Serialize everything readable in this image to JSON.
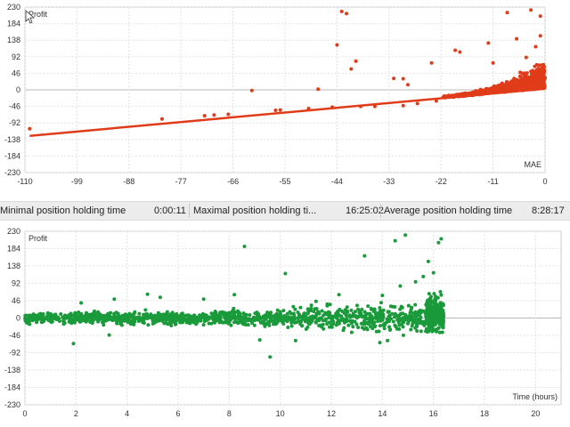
{
  "stats": {
    "min_label": "Minimal position holding time",
    "min_value": "0:00:11",
    "max_label": "Maximal position holding ti...",
    "max_value": "16:25:02",
    "avg_label": "Average position holding time",
    "avg_value": "8:28:17"
  },
  "chart_data": [
    {
      "type": "scatter",
      "ylabel": "Profit",
      "xlabel": "MAE",
      "color": "#e03c1a",
      "xlim": [
        -110,
        0
      ],
      "ylim": [
        -230,
        230
      ],
      "x_ticks": [
        -110,
        -99,
        -88,
        -77,
        -66,
        -55,
        -44,
        -33,
        -22,
        -11,
        0
      ],
      "y_ticks": [
        230,
        184,
        138,
        92,
        46,
        0,
        -46,
        -92,
        -138,
        -184,
        -230
      ],
      "grid": true,
      "trendline": {
        "x": [
          -109,
          0
        ],
        "y": [
          -128,
          3
        ]
      },
      "outlier_points": [
        [
          -109,
          -108
        ],
        [
          -81,
          -81
        ],
        [
          -72,
          -72
        ],
        [
          -70,
          -70
        ],
        [
          -67,
          -68
        ],
        [
          -62,
          -2
        ],
        [
          -57,
          -57
        ],
        [
          -56,
          -56
        ],
        [
          -48,
          2
        ],
        [
          -44,
          125
        ],
        [
          -43,
          218
        ],
        [
          -42,
          212
        ],
        [
          -41,
          58
        ],
        [
          -40,
          80
        ],
        [
          -32,
          32
        ],
        [
          -30,
          31
        ],
        [
          -29,
          14
        ],
        [
          -24,
          75
        ],
        [
          -19,
          110
        ],
        [
          -18,
          105
        ],
        [
          -12,
          130
        ],
        [
          -11,
          75
        ],
        [
          -8,
          215
        ],
        [
          -6,
          142
        ],
        [
          -4,
          90
        ],
        [
          -3,
          222
        ],
        [
          -1,
          205
        ],
        [
          -1,
          150
        ],
        [
          -2,
          120
        ],
        [
          -30,
          -44
        ],
        [
          -36,
          -46
        ],
        [
          -39,
          -46
        ],
        [
          -45,
          -48
        ],
        [
          -50,
          -52
        ],
        [
          -27,
          -38
        ],
        [
          -23,
          -31
        ]
      ],
      "cloud": {
        "x_range": [
          -22,
          0
        ],
        "y_spread_max": 90,
        "count": 900,
        "baseline_slope": 1.2
      }
    },
    {
      "type": "scatter",
      "ylabel": "Profit",
      "xlabel": "Time (hours)",
      "color": "#1a9a3a",
      "xlim": [
        0,
        21
      ],
      "ylim": [
        -230,
        230
      ],
      "x_ticks": [
        0,
        2,
        4,
        6,
        8,
        10,
        12,
        14,
        16,
        18,
        20
      ],
      "y_ticks": [
        230,
        184,
        138,
        92,
        46,
        0,
        -46,
        -92,
        -138,
        -184,
        -230
      ],
      "grid": true,
      "outlier_points": [
        [
          8.6,
          190
        ],
        [
          10.2,
          118
        ],
        [
          9.6,
          -103
        ],
        [
          13.3,
          165
        ],
        [
          14.9,
          220
        ],
        [
          14.5,
          205
        ],
        [
          16.3,
          210
        ],
        [
          16.2,
          200
        ],
        [
          13.9,
          -65
        ],
        [
          14.2,
          -60
        ],
        [
          8.2,
          62
        ],
        [
          4.8,
          63
        ],
        [
          3.5,
          50
        ],
        [
          2.2,
          40
        ],
        [
          11.4,
          44
        ],
        [
          12.3,
          62
        ],
        [
          7.0,
          50
        ],
        [
          5.3,
          55
        ],
        [
          10.6,
          -60
        ],
        [
          9.2,
          -58
        ],
        [
          1.9,
          -68
        ],
        [
          3.3,
          -45
        ],
        [
          12.8,
          -38
        ],
        [
          16.0,
          120
        ],
        [
          15.8,
          150
        ],
        [
          15.6,
          110
        ],
        [
          15.3,
          96
        ],
        [
          14.7,
          85
        ],
        [
          14.0,
          60
        ]
      ],
      "cloud": {
        "x_range": [
          0,
          16.4
        ],
        "y_spread_base": 12,
        "y_spread_growth": 4.5,
        "count": 1300
      }
    }
  ]
}
